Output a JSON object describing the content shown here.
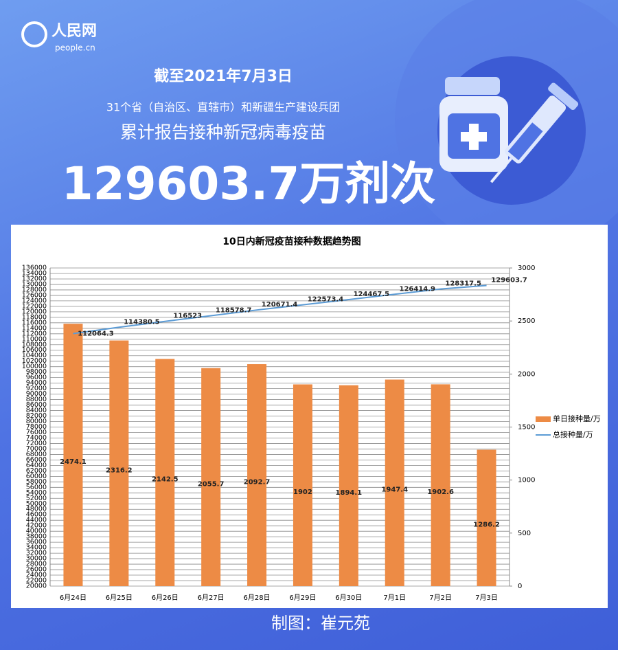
{
  "header": {
    "logo": "人民网",
    "logo_sub": "people.cn",
    "date": "截至2021年7月3日",
    "line1": "31个省（自治区、直辖市）和新疆生产建设兵团",
    "line2": "累计报告接种新冠病毒疫苗",
    "total": "129603.7万剂次"
  },
  "chart_data": {
    "type": "combo",
    "title": "10日内新冠疫苗接种数据趋势图",
    "categories": [
      "6月24日",
      "6月25日",
      "6月26日",
      "6月27日",
      "6月28日",
      "6月29日",
      "6月30日",
      "7月1日",
      "7月2日",
      "7月3日"
    ],
    "series": [
      {
        "name": "单日接种量/万",
        "type": "bar",
        "axis": "y2",
        "color": "#ed8b45",
        "values": [
          2474.1,
          2316.2,
          2142.5,
          2055.7,
          2092.7,
          1902,
          1894.1,
          1947.4,
          1902.6,
          1286.2
        ]
      },
      {
        "name": "总接种量/万",
        "type": "line",
        "color": "#5b9bd5",
        "values": [
          112064.3,
          114380.5,
          116523,
          118578.7,
          120671.4,
          122573.4,
          124467.5,
          126414.9,
          128317.5,
          129603.7
        ]
      }
    ],
    "ylim": [
      20000,
      136000
    ],
    "yticks": [
      20000,
      22000,
      24000,
      26000,
      28000,
      30000,
      32000,
      34000,
      36000,
      38000,
      40000,
      42000,
      44000,
      46000,
      48000,
      50000,
      52000,
      54000,
      56000,
      58000,
      60000,
      62000,
      64000,
      66000,
      68000,
      70000,
      72000,
      74000,
      76000,
      78000,
      80000,
      82000,
      84000,
      86000,
      88000,
      90000,
      92000,
      94000,
      96000,
      98000,
      100000,
      102000,
      104000,
      106000,
      108000,
      110000,
      112000,
      114000,
      116000,
      118000,
      120000,
      122000,
      124000,
      126000,
      128000,
      130000,
      132000,
      134000,
      136000
    ],
    "y2lim": [
      0,
      3000
    ],
    "y2ticks": [
      0,
      500,
      1000,
      1500,
      2000,
      2500,
      3000
    ],
    "grid": true,
    "legend": "right"
  },
  "footer": "制图：崔元苑"
}
